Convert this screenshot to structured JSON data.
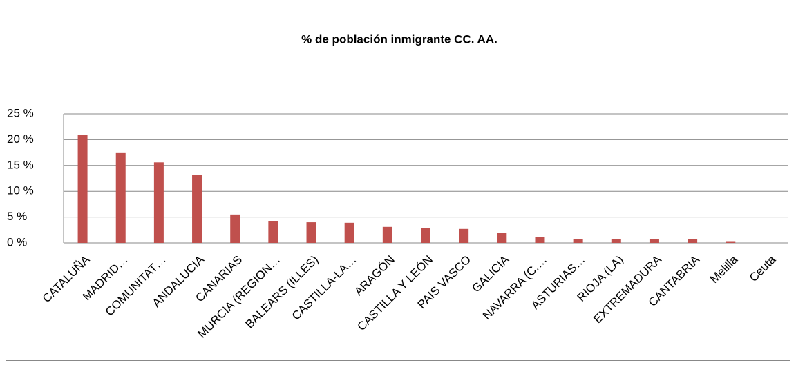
{
  "chart_data": {
    "type": "bar",
    "title": "% de población inmigrante CC. AA.",
    "categories": [
      "CATALUÑA",
      "MADRID…",
      "COMUNITAT…",
      "ANDALUCIA",
      "CANARIAS",
      "MURCIA (REGION…",
      "BALEARS (ILLES)",
      "CASTILLA-LA…",
      "ARAGÓN",
      "CASTILLA Y LEÓN",
      "PAIS VASCO",
      "GALICIA",
      "NAVARRA (C.…",
      "ASTURIAS…",
      "RIOJA (LA)",
      "EXTREMADURA",
      "CANTABRIA",
      "Melilla",
      "Ceuta"
    ],
    "values": [
      20.9,
      17.4,
      15.6,
      13.2,
      5.5,
      4.2,
      4.0,
      3.9,
      3.1,
      2.9,
      2.7,
      1.9,
      1.2,
      0.8,
      0.8,
      0.7,
      0.7,
      0.2,
      0
    ],
    "color": "#c0504d",
    "ylim": [
      0,
      25
    ],
    "yticks": [
      {
        "value": 0,
        "label": "0 %"
      },
      {
        "value": 5,
        "label": "5 %"
      },
      {
        "value": 10,
        "label": "10 %"
      },
      {
        "value": 15,
        "label": "15 %"
      },
      {
        "value": 20,
        "label": "20 %"
      },
      {
        "value": 25,
        "label": "25 %"
      }
    ],
    "grid": true
  }
}
